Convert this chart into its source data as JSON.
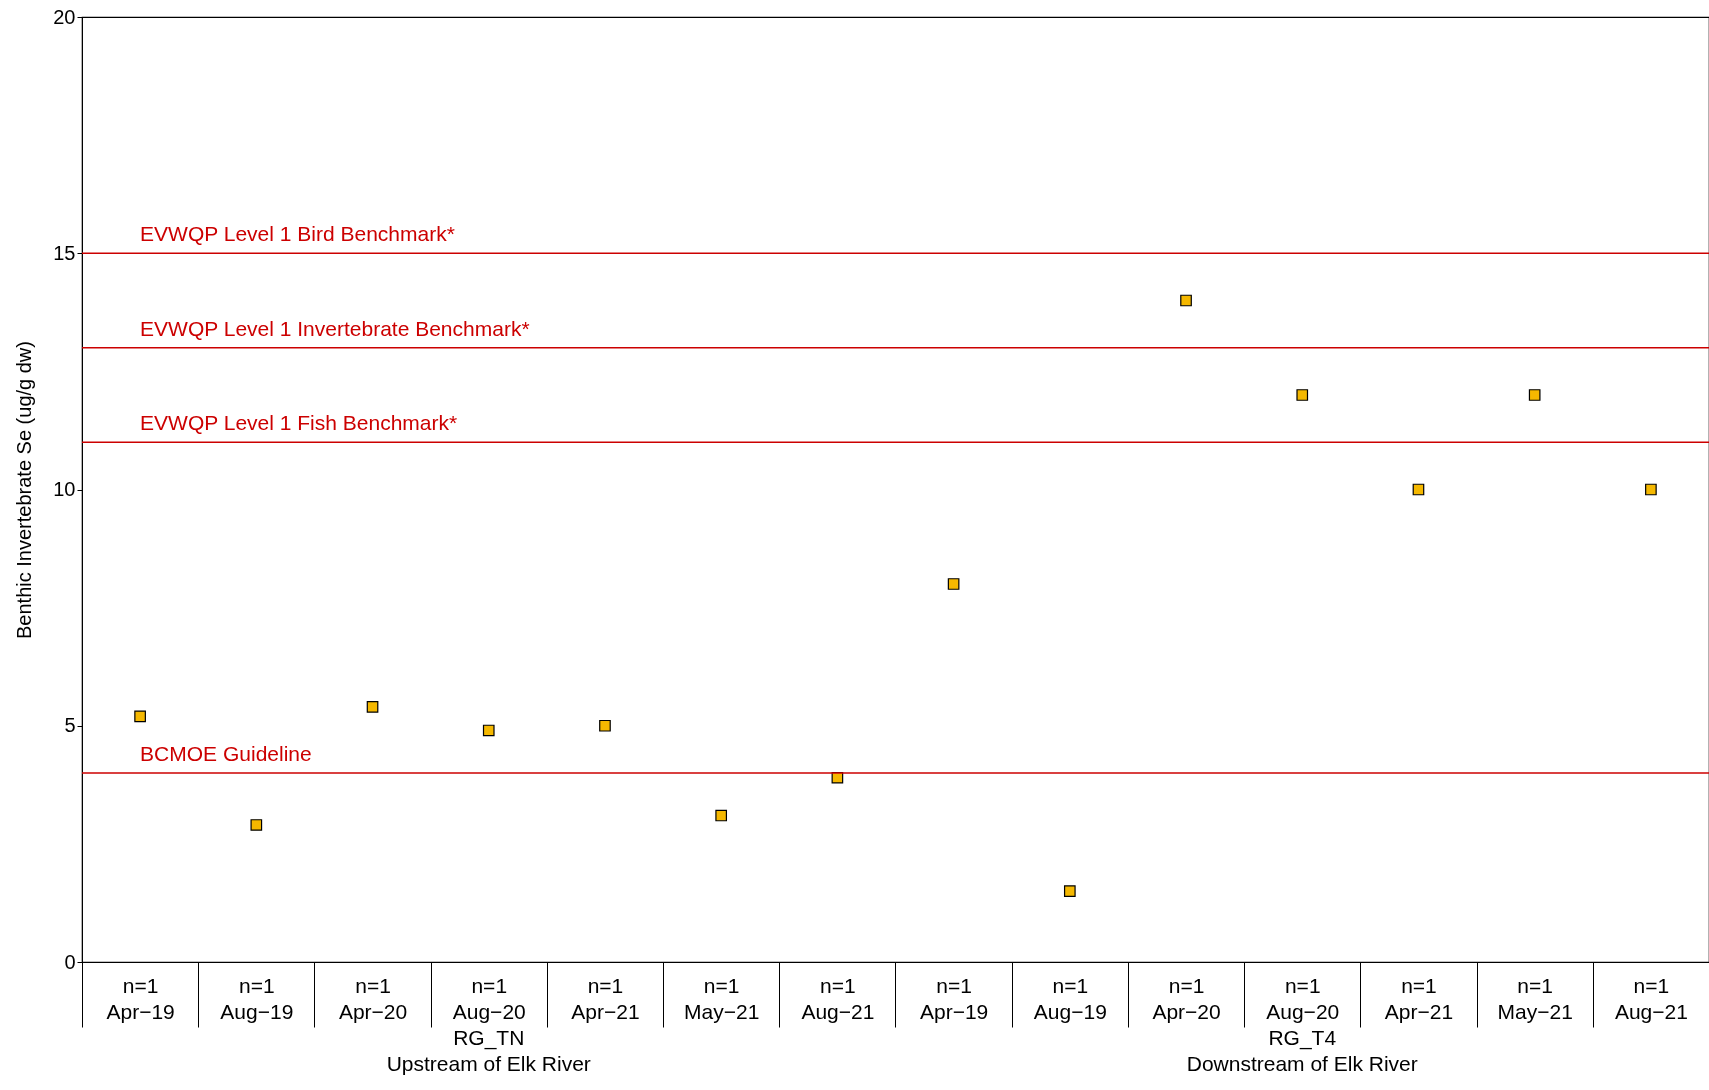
{
  "chart_data": {
    "type": "scatter",
    "ylabel": "Benthic Invertebrate Se (ug/g dw)",
    "categories": [
      "n=1\nApr−19",
      "n=1\nAug−19",
      "n=1\nApr−20",
      "n=1\nAug−20",
      "n=1\nApr−21",
      "n=1\nMay−21",
      "n=1\nAug−21",
      "n=1\nApr−19",
      "n=1\nAug−19",
      "n=1\nApr−20",
      "n=1\nAug−20",
      "n=1\nApr−21",
      "n=1\nMay−21",
      "n=1\nAug−21"
    ],
    "series": [
      {
        "color": "#f5b800",
        "values": [
          5.2,
          2.9,
          5.4,
          4.9,
          5.0,
          3.1,
          3.9,
          8.0,
          1.5,
          14.0,
          12.0,
          10.0,
          12.0,
          10.0
        ]
      }
    ],
    "ylim": [
      0,
      20
    ],
    "yticks": [
      0,
      5,
      10,
      15,
      20
    ],
    "marker": "square",
    "grid": false,
    "ref_lines": [
      {
        "axis": "y",
        "value": 15,
        "label": "EVWQP Level 1 Bird Benchmark*",
        "color": "#cc0000"
      },
      {
        "axis": "y",
        "value": 13,
        "label": "EVWQP Level 1 Invertebrate Benchmark*",
        "color": "#cc0000"
      },
      {
        "axis": "y",
        "value": 11,
        "label": "EVWQP Level 1 Fish Benchmark*",
        "color": "#cc0000"
      },
      {
        "axis": "y",
        "value": 4,
        "label": "BCMOE Guideline",
        "color": "#cc0000"
      }
    ],
    "annotations": [
      "RG_TN\nUpstream of Elk River",
      "RG_T4\nDownstream of Elk River"
    ]
  }
}
